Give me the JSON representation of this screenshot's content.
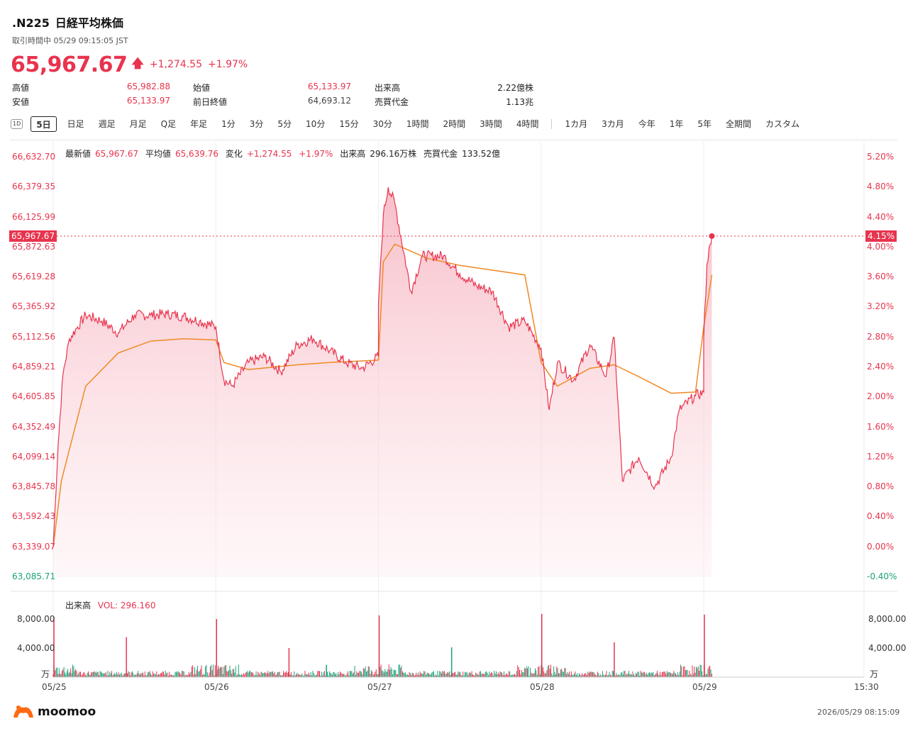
{
  "header": {
    "ticker": ".N225",
    "name": "日経平均株価",
    "status": "取引時間中 05/29 09:15:05 JST",
    "price": "65,967.67",
    "change": "+1,274.55",
    "change_pct": "+1.97%"
  },
  "stats": {
    "high_label": "高値",
    "high": "65,982.88",
    "low_label": "安値",
    "low": "65,133.97",
    "open_label": "始値",
    "open": "65,133.97",
    "prev_label": "前日終値",
    "prev": "64,693.12",
    "volume_label": "出来高",
    "volume": "2.22億株",
    "turnover_label": "売買代金",
    "turnover": "1.13兆"
  },
  "tabs": {
    "icon": "1D",
    "items": [
      "5日",
      "日足",
      "週足",
      "月足",
      "Q足",
      "年足",
      "1分",
      "3分",
      "5分",
      "10分",
      "15分",
      "30分",
      "1時間",
      "2時間",
      "3時間",
      "4時間",
      "1カ月",
      "3カ月",
      "今年",
      "1年",
      "5年",
      "全期間",
      "カスタム"
    ],
    "active": "5日"
  },
  "legend": {
    "latest_label": "最新値",
    "latest": "65,967.67",
    "avg_label": "平均値",
    "avg": "65,639.76",
    "chg_label": "変化",
    "chg": "+1,274.55",
    "chg_pct": "+1.97%",
    "vol_label": "出来高",
    "vol": "296.16万株",
    "turnover_label": "売買代金",
    "turnover": "133.52億"
  },
  "volume_panel": {
    "title": "出来高",
    "vol_label": "VOL: 296.160",
    "ticks": [
      "8,000.00",
      "4,000.00"
    ],
    "unit": "万"
  },
  "price_badge": "65,967.67",
  "pct_badge": "4.15%",
  "colors": {
    "up": "#e8344e",
    "down": "#1aa37a",
    "avg_line": "#f08a24"
  },
  "chart_data": {
    "type": "line",
    "price_ticks": [
      "66,632.70",
      "66,379.35",
      "66,125.99",
      "65,872.63",
      "65,619.28",
      "65,365.92",
      "65,112.56",
      "64,859.21",
      "64,605.85",
      "64,352.49",
      "64,099.14",
      "63,845.78",
      "63,592.43",
      "63,339.07",
      "63,085.71"
    ],
    "pct_ticks": [
      "5.20%",
      "4.80%",
      "4.40%",
      "4.00%",
      "3.60%",
      "3.20%",
      "2.80%",
      "2.40%",
      "2.00%",
      "1.60%",
      "1.20%",
      "0.80%",
      "0.40%",
      "0.00%",
      "-0.40%"
    ],
    "x_labels": [
      "05/25",
      "05/26",
      "05/27",
      "05/28",
      "05/29",
      "15:30"
    ],
    "ylim": [
      63085.71,
      66632.7
    ],
    "series": [
      {
        "name": "最新値",
        "x": [
          0,
          0.03,
          0.06,
          0.1,
          0.15,
          0.2,
          0.3,
          0.4,
          0.5,
          0.6,
          0.7,
          0.8,
          0.9,
          1.0,
          1.0,
          1.05,
          1.1,
          1.2,
          1.3,
          1.4,
          1.5,
          1.6,
          1.7,
          1.8,
          1.9,
          2.0,
          2.0,
          2.03,
          2.06,
          2.1,
          2.2,
          2.27,
          2.4,
          2.5,
          2.6,
          2.7,
          2.8,
          2.9,
          3.0,
          3.0,
          3.05,
          3.1,
          3.2,
          3.3,
          3.4,
          3.45,
          3.5,
          3.6,
          3.7,
          3.8,
          3.85,
          3.95,
          4.0,
          4.0,
          4.02,
          4.04,
          4.05
        ],
        "values": [
          63339,
          64200,
          64800,
          65100,
          65200,
          65300,
          65250,
          65150,
          65300,
          65300,
          65310,
          65290,
          65250,
          65200,
          65200,
          64750,
          64700,
          64900,
          64950,
          64820,
          65050,
          65100,
          65000,
          64900,
          64850,
          64950,
          65400,
          66150,
          66380,
          66250,
          65500,
          65800,
          65800,
          65650,
          65550,
          65500,
          65200,
          65250,
          65020,
          65020,
          64500,
          64900,
          64750,
          65050,
          64780,
          65110,
          63900,
          64100,
          63850,
          64100,
          64500,
          64620,
          64650,
          65100,
          65730,
          65900,
          65968
        ]
      },
      {
        "name": "平均値",
        "x": [
          0,
          0.05,
          0.2,
          0.4,
          0.6,
          0.8,
          1.0,
          1.05,
          1.2,
          1.5,
          1.7,
          2.0,
          2.03,
          2.1,
          2.3,
          2.5,
          2.7,
          2.9,
          3.0,
          3.1,
          3.3,
          3.45,
          3.6,
          3.8,
          3.95,
          4.0,
          4.05
        ],
        "values": [
          63339,
          63900,
          64700,
          64980,
          65080,
          65100,
          65090,
          64900,
          64840,
          64880,
          64900,
          64920,
          65750,
          65900,
          65780,
          65720,
          65680,
          65640,
          64900,
          64700,
          64850,
          64880,
          64780,
          64640,
          64650,
          65200,
          65640
        ]
      }
    ],
    "volume": {
      "spikes_x": [
        0.0,
        0.45,
        1.0,
        1.45,
        1.68,
        2.0,
        2.45,
        3.0,
        3.45,
        4.0
      ],
      "spikes_val": [
        8300,
        5500,
        8000,
        4000,
        1700,
        8500,
        4100,
        8700,
        4800,
        8600
      ]
    }
  }
}
